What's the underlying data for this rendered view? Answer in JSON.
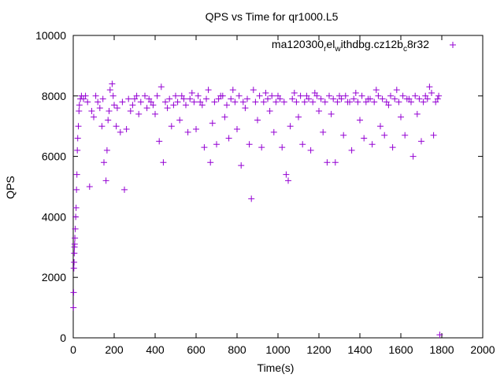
{
  "chart_data": {
    "type": "scatter",
    "title": "QPS vs Time for qr1000.L5",
    "xlabel": "Time(s)",
    "ylabel": "QPS",
    "xlim": [
      0,
      2000
    ],
    "ylim": [
      0,
      10000
    ],
    "xticks": [
      "0",
      "200",
      "400",
      "600",
      "800",
      "1000",
      "1200",
      "1400",
      "1600",
      "1800",
      "2000"
    ],
    "yticks": [
      "0",
      "2000",
      "4000",
      "6000",
      "8000",
      "10000"
    ],
    "grid": false,
    "legend": {
      "position": "top-right"
    },
    "series": [
      {
        "name": "ma120300_rel_withdbg.cz12b_c8r32",
        "color": "#9400d3",
        "marker": "plus",
        "points": [
          [
            1,
            1000
          ],
          [
            2,
            1500
          ],
          [
            3,
            2300
          ],
          [
            4,
            2500
          ],
          [
            5,
            2800
          ],
          [
            6,
            3000
          ],
          [
            7,
            3100
          ],
          [
            8,
            3300
          ],
          [
            10,
            3600
          ],
          [
            12,
            4000
          ],
          [
            14,
            4300
          ],
          [
            16,
            4900
          ],
          [
            18,
            5400
          ],
          [
            20,
            6200
          ],
          [
            22,
            6600
          ],
          [
            25,
            7000
          ],
          [
            28,
            7500
          ],
          [
            30,
            7700
          ],
          [
            35,
            7900
          ],
          [
            40,
            8000
          ],
          [
            50,
            7900
          ],
          [
            60,
            8000
          ],
          [
            70,
            7800
          ],
          [
            80,
            5000
          ],
          [
            90,
            7500
          ],
          [
            100,
            7300
          ],
          [
            120,
            7800
          ],
          [
            140,
            7000
          ],
          [
            150,
            5800
          ],
          [
            160,
            5200
          ],
          [
            165,
            6200
          ],
          [
            170,
            7200
          ],
          [
            180,
            8200
          ],
          [
            190,
            8400
          ],
          [
            200,
            7700
          ],
          [
            210,
            7000
          ],
          [
            230,
            6800
          ],
          [
            250,
            4900
          ],
          [
            260,
            6900
          ],
          [
            280,
            7500
          ],
          [
            300,
            7900
          ],
          [
            320,
            7400
          ],
          [
            350,
            8000
          ],
          [
            380,
            7800
          ],
          [
            400,
            7400
          ],
          [
            420,
            6500
          ],
          [
            430,
            8300
          ],
          [
            440,
            5800
          ],
          [
            460,
            7600
          ],
          [
            480,
            7000
          ],
          [
            500,
            8000
          ],
          [
            520,
            7200
          ],
          [
            540,
            7900
          ],
          [
            560,
            6800
          ],
          [
            580,
            8100
          ],
          [
            600,
            6900
          ],
          [
            620,
            7800
          ],
          [
            640,
            6300
          ],
          [
            660,
            8200
          ],
          [
            670,
            5800
          ],
          [
            680,
            7100
          ],
          [
            700,
            6400
          ],
          [
            720,
            8000
          ],
          [
            740,
            7300
          ],
          [
            760,
            6600
          ],
          [
            780,
            8200
          ],
          [
            800,
            6900
          ],
          [
            820,
            5700
          ],
          [
            840,
            7600
          ],
          [
            860,
            6400
          ],
          [
            870,
            4600
          ],
          [
            880,
            8200
          ],
          [
            900,
            7200
          ],
          [
            920,
            6300
          ],
          [
            940,
            8100
          ],
          [
            960,
            7500
          ],
          [
            980,
            6800
          ],
          [
            1000,
            8000
          ],
          [
            1020,
            6300
          ],
          [
            1040,
            5400
          ],
          [
            1050,
            5200
          ],
          [
            1060,
            7000
          ],
          [
            1080,
            8100
          ],
          [
            1100,
            7300
          ],
          [
            1120,
            6400
          ],
          [
            1140,
            8000
          ],
          [
            1160,
            6200
          ],
          [
            1180,
            8100
          ],
          [
            1200,
            7500
          ],
          [
            1220,
            6800
          ],
          [
            1240,
            5800
          ],
          [
            1260,
            7400
          ],
          [
            1280,
            5800
          ],
          [
            1300,
            8000
          ],
          [
            1320,
            6700
          ],
          [
            1340,
            7800
          ],
          [
            1360,
            6200
          ],
          [
            1380,
            8100
          ],
          [
            1400,
            7200
          ],
          [
            1420,
            6600
          ],
          [
            1440,
            7900
          ],
          [
            1460,
            6400
          ],
          [
            1480,
            8200
          ],
          [
            1500,
            7000
          ],
          [
            1520,
            6700
          ],
          [
            1540,
            7700
          ],
          [
            1560,
            6300
          ],
          [
            1580,
            8200
          ],
          [
            1600,
            7300
          ],
          [
            1620,
            6700
          ],
          [
            1640,
            7900
          ],
          [
            1660,
            6000
          ],
          [
            1680,
            7400
          ],
          [
            1700,
            6500
          ],
          [
            1720,
            8000
          ],
          [
            1740,
            8300
          ],
          [
            1760,
            6700
          ],
          [
            1780,
            7900
          ],
          [
            1790,
            100
          ],
          [
            110,
            8000
          ],
          [
            130,
            7600
          ],
          [
            145,
            7900
          ],
          [
            175,
            7500
          ],
          [
            195,
            8000
          ],
          [
            215,
            7600
          ],
          [
            240,
            7800
          ],
          [
            270,
            7900
          ],
          [
            290,
            7700
          ],
          [
            310,
            8000
          ],
          [
            330,
            7800
          ],
          [
            360,
            7600
          ],
          [
            370,
            7900
          ],
          [
            390,
            7700
          ],
          [
            410,
            8000
          ],
          [
            450,
            7800
          ],
          [
            470,
            7900
          ],
          [
            490,
            7700
          ],
          [
            510,
            7800
          ],
          [
            530,
            8000
          ],
          [
            550,
            7700
          ],
          [
            570,
            7900
          ],
          [
            590,
            7800
          ],
          [
            610,
            8000
          ],
          [
            630,
            7700
          ],
          [
            650,
            7900
          ],
          [
            690,
            7800
          ],
          [
            710,
            7900
          ],
          [
            730,
            8000
          ],
          [
            750,
            7700
          ],
          [
            770,
            7900
          ],
          [
            790,
            7800
          ],
          [
            810,
            8000
          ],
          [
            830,
            7800
          ],
          [
            850,
            7900
          ],
          [
            890,
            7800
          ],
          [
            910,
            8000
          ],
          [
            930,
            7800
          ],
          [
            950,
            7900
          ],
          [
            970,
            8000
          ],
          [
            990,
            7800
          ],
          [
            1010,
            7900
          ],
          [
            1030,
            7800
          ],
          [
            1070,
            7900
          ],
          [
            1090,
            7800
          ],
          [
            1110,
            8000
          ],
          [
            1130,
            7800
          ],
          [
            1150,
            7900
          ],
          [
            1170,
            7800
          ],
          [
            1190,
            8000
          ],
          [
            1210,
            7900
          ],
          [
            1230,
            7800
          ],
          [
            1250,
            8000
          ],
          [
            1270,
            7900
          ],
          [
            1290,
            7800
          ],
          [
            1310,
            7900
          ],
          [
            1330,
            8000
          ],
          [
            1350,
            7800
          ],
          [
            1370,
            7900
          ],
          [
            1390,
            7800
          ],
          [
            1410,
            8000
          ],
          [
            1430,
            7800
          ],
          [
            1450,
            7900
          ],
          [
            1470,
            7800
          ],
          [
            1490,
            8000
          ],
          [
            1510,
            7900
          ],
          [
            1530,
            7800
          ],
          [
            1550,
            8000
          ],
          [
            1570,
            7900
          ],
          [
            1590,
            7800
          ],
          [
            1610,
            8000
          ],
          [
            1630,
            7900
          ],
          [
            1650,
            7800
          ],
          [
            1670,
            8000
          ],
          [
            1690,
            7900
          ],
          [
            1710,
            7800
          ],
          [
            1730,
            7900
          ],
          [
            1750,
            8100
          ],
          [
            1770,
            7800
          ],
          [
            1785,
            8000
          ]
        ]
      }
    ]
  }
}
